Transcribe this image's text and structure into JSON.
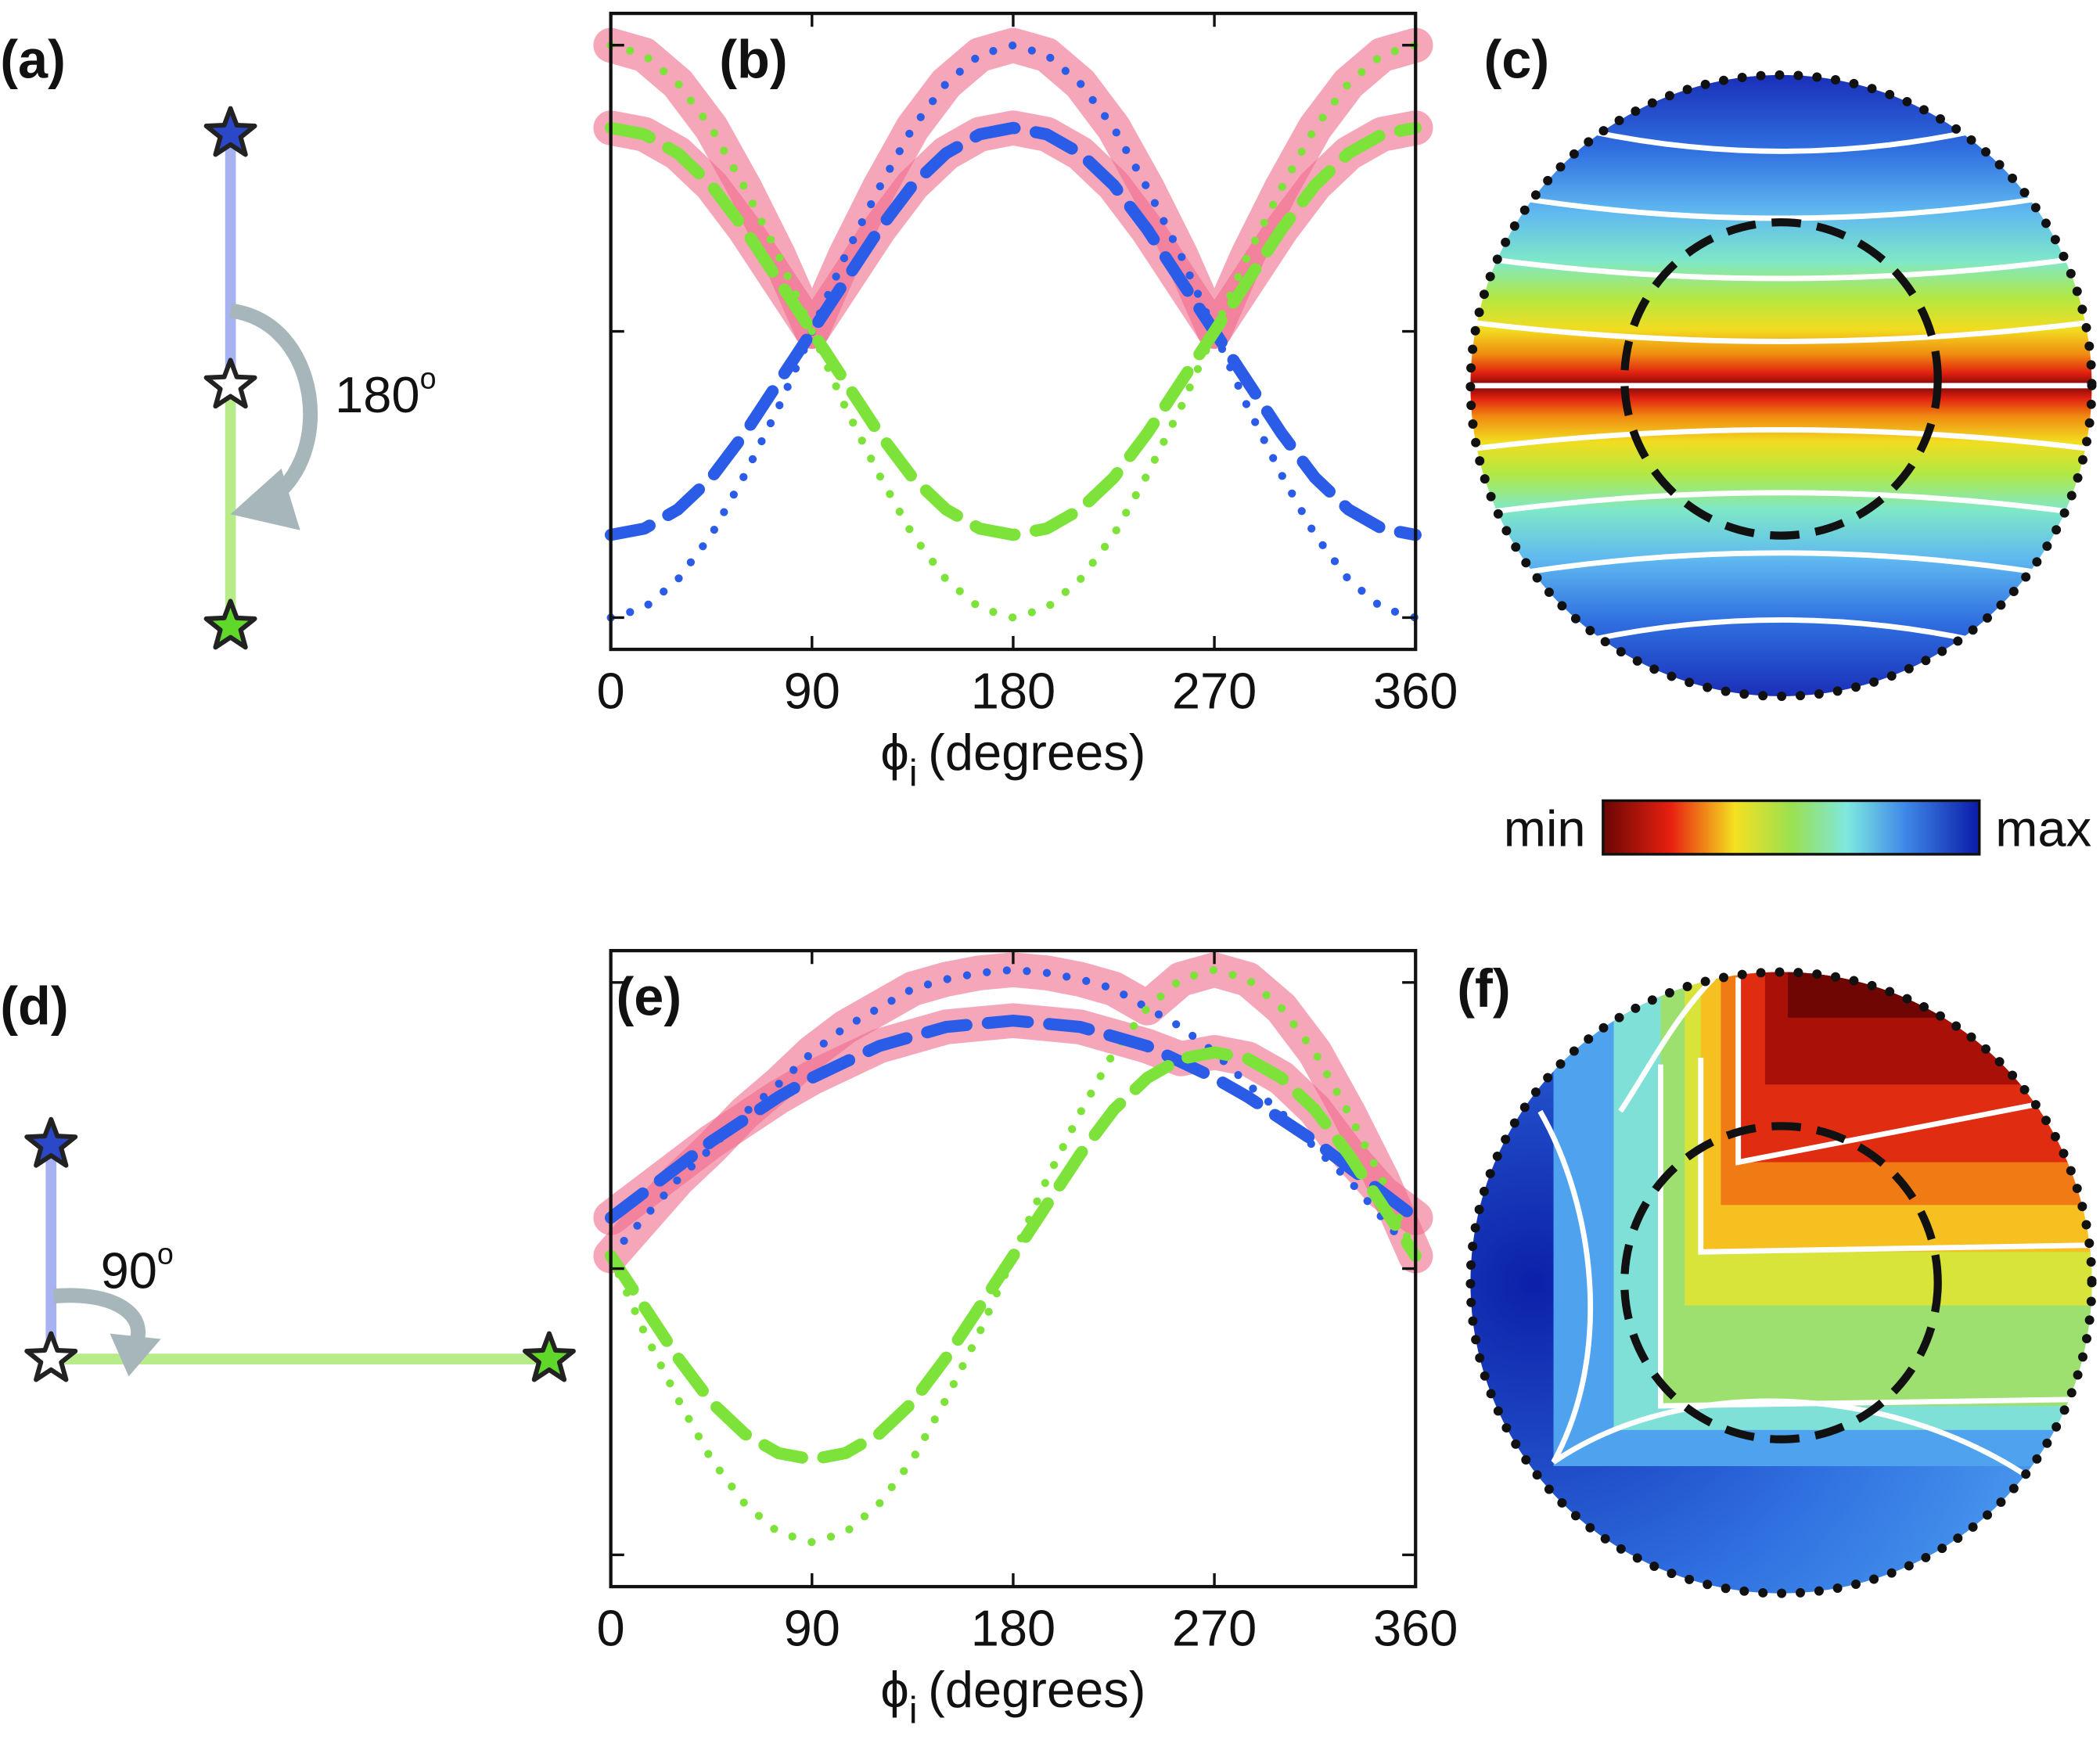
{
  "chart_data": [
    {
      "type": "line",
      "label": "(b)",
      "xlabel_symbol": "ϕ",
      "xlabel_subscript": "i",
      "xlabel": "(degrees)",
      "x": [
        0,
        15,
        30,
        45,
        60,
        75,
        90,
        105,
        120,
        135,
        150,
        165,
        180,
        195,
        210,
        225,
        240,
        255,
        270,
        285,
        300,
        315,
        330,
        345,
        360
      ],
      "xlim": [
        0,
        360
      ],
      "xticks": [
        0,
        90,
        180,
        270,
        360
      ],
      "ylim": [
        0,
        1
      ],
      "yticks": [
        0.05,
        0.5,
        0.95
      ],
      "series": [
        {
          "color": "#f06a8a",
          "style": "band",
          "values": [
            0.95,
            0.935,
            0.89,
            0.82,
            0.725,
            0.62,
            0.5,
            0.62,
            0.725,
            0.82,
            0.89,
            0.935,
            0.95,
            0.935,
            0.89,
            0.82,
            0.725,
            0.62,
            0.5,
            0.62,
            0.725,
            0.82,
            0.89,
            0.935,
            0.95
          ]
        },
        {
          "color": "#f06a8a",
          "style": "band",
          "values": [
            0.82,
            0.81,
            0.78,
            0.73,
            0.66,
            0.58,
            0.5,
            0.58,
            0.66,
            0.73,
            0.78,
            0.81,
            0.82,
            0.81,
            0.78,
            0.73,
            0.66,
            0.58,
            0.5,
            0.58,
            0.66,
            0.73,
            0.78,
            0.81,
            0.82
          ]
        },
        {
          "color": "#2b5ce8",
          "style": "dotted",
          "values": [
            0.05,
            0.065,
            0.11,
            0.18,
            0.275,
            0.38,
            0.5,
            0.62,
            0.725,
            0.82,
            0.89,
            0.935,
            0.95,
            0.935,
            0.89,
            0.82,
            0.725,
            0.62,
            0.5,
            0.38,
            0.275,
            0.18,
            0.11,
            0.065,
            0.05
          ]
        },
        {
          "color": "#7de23a",
          "style": "dotted",
          "values": [
            0.95,
            0.935,
            0.89,
            0.82,
            0.725,
            0.62,
            0.5,
            0.38,
            0.275,
            0.18,
            0.11,
            0.065,
            0.05,
            0.065,
            0.11,
            0.18,
            0.275,
            0.38,
            0.5,
            0.62,
            0.725,
            0.82,
            0.89,
            0.935,
            0.95
          ]
        },
        {
          "color": "#2b5ce8",
          "style": "dashed",
          "values": [
            0.18,
            0.19,
            0.22,
            0.27,
            0.34,
            0.42,
            0.5,
            0.58,
            0.66,
            0.73,
            0.78,
            0.81,
            0.82,
            0.81,
            0.78,
            0.73,
            0.66,
            0.58,
            0.5,
            0.42,
            0.34,
            0.27,
            0.22,
            0.19,
            0.18
          ]
        },
        {
          "color": "#7de23a",
          "style": "dashed",
          "values": [
            0.82,
            0.81,
            0.78,
            0.73,
            0.66,
            0.58,
            0.5,
            0.42,
            0.34,
            0.27,
            0.22,
            0.19,
            0.18,
            0.19,
            0.22,
            0.27,
            0.34,
            0.42,
            0.5,
            0.58,
            0.66,
            0.73,
            0.78,
            0.81,
            0.82
          ]
        }
      ]
    },
    {
      "type": "line",
      "label": "(e)",
      "xlabel_symbol": "ϕ",
      "xlabel_subscript": "i",
      "xlabel": "(degrees)",
      "x": [
        0,
        15,
        30,
        45,
        60,
        75,
        90,
        105,
        120,
        135,
        150,
        165,
        180,
        195,
        210,
        225,
        240,
        255,
        270,
        285,
        300,
        315,
        330,
        345,
        360
      ],
      "xlim": [
        0,
        360
      ],
      "xticks": [
        0,
        90,
        180,
        270,
        360
      ],
      "ylim": [
        0,
        1
      ],
      "yticks": [
        0.05,
        0.5,
        0.95
      ],
      "series": [
        {
          "color": "#f06a8a",
          "style": "band",
          "values": [
            0.52,
            0.58,
            0.64,
            0.69,
            0.745,
            0.79,
            0.84,
            0.88,
            0.91,
            0.94,
            0.955,
            0.965,
            0.97,
            0.965,
            0.955,
            0.94,
            0.91,
            0.955,
            0.97,
            0.955,
            0.91,
            0.84,
            0.745,
            0.64,
            0.52
          ]
        },
        {
          "color": "#f06a8a",
          "style": "band",
          "values": [
            0.58,
            0.62,
            0.66,
            0.7,
            0.735,
            0.77,
            0.8,
            0.825,
            0.85,
            0.865,
            0.88,
            0.885,
            0.89,
            0.885,
            0.88,
            0.865,
            0.85,
            0.83,
            0.84,
            0.83,
            0.8,
            0.75,
            0.68,
            0.62,
            0.58
          ]
        },
        {
          "color": "#2b5ce8",
          "style": "dotted",
          "values": [
            0.52,
            0.58,
            0.64,
            0.69,
            0.745,
            0.79,
            0.84,
            0.88,
            0.91,
            0.94,
            0.955,
            0.965,
            0.97,
            0.965,
            0.955,
            0.94,
            0.91,
            0.88,
            0.84,
            0.79,
            0.745,
            0.69,
            0.64,
            0.58,
            0.52
          ]
        },
        {
          "color": "#7de23a",
          "style": "dotted",
          "values": [
            0.52,
            0.4,
            0.295,
            0.2,
            0.13,
            0.085,
            0.07,
            0.085,
            0.13,
            0.2,
            0.295,
            0.4,
            0.52,
            0.64,
            0.745,
            0.84,
            0.91,
            0.955,
            0.97,
            0.955,
            0.91,
            0.84,
            0.745,
            0.64,
            0.52
          ]
        },
        {
          "color": "#2b5ce8",
          "style": "dashed",
          "values": [
            0.58,
            0.62,
            0.66,
            0.7,
            0.735,
            0.77,
            0.8,
            0.825,
            0.85,
            0.865,
            0.88,
            0.885,
            0.89,
            0.885,
            0.88,
            0.865,
            0.85,
            0.825,
            0.8,
            0.77,
            0.735,
            0.7,
            0.66,
            0.62,
            0.58
          ]
        },
        {
          "color": "#7de23a",
          "style": "dashed",
          "values": [
            0.52,
            0.44,
            0.36,
            0.29,
            0.24,
            0.21,
            0.2,
            0.21,
            0.24,
            0.29,
            0.36,
            0.44,
            0.52,
            0.6,
            0.68,
            0.75,
            0.8,
            0.83,
            0.84,
            0.83,
            0.8,
            0.75,
            0.68,
            0.6,
            0.52
          ]
        }
      ]
    }
  ],
  "panels": {
    "a": {
      "label": "(a)",
      "angle": "180",
      "degree": "o"
    },
    "c": {
      "label": "(c)"
    },
    "d": {
      "label": "(d)",
      "angle": "90",
      "degree": "o"
    },
    "f": {
      "label": "(f)"
    }
  },
  "colorbar": {
    "min": "min",
    "max": "max"
  }
}
